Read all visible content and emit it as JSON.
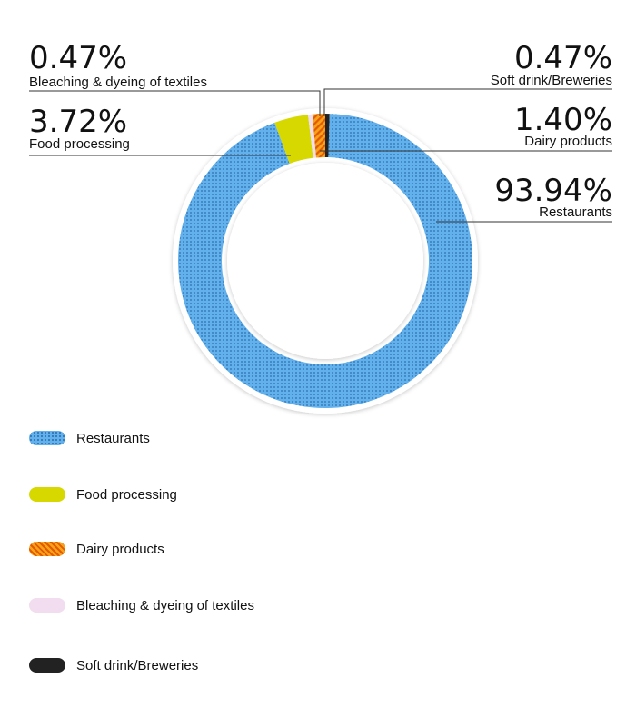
{
  "chart_data": {
    "type": "pie",
    "title": "",
    "slices": [
      {
        "label": "Restaurants",
        "pct_label": "93.94%",
        "value": 93.94,
        "color": "#5aa9e6",
        "pattern": "dots"
      },
      {
        "label": "Food processing",
        "pct_label": "3.72%",
        "value": 3.72,
        "color": "#d6d800",
        "pattern": "solid"
      },
      {
        "label": "Dairy products",
        "pct_label": "1.40%",
        "value": 1.4,
        "color": "#f08a00",
        "pattern": "stripes"
      },
      {
        "label": "Bleaching & dyeing of textiles",
        "pct_label": "0.47%",
        "value": 0.47,
        "color": "#f2dcef",
        "pattern": "solid"
      },
      {
        "label": "Soft drink/Breweries",
        "pct_label": "0.47%",
        "value": 0.47,
        "color": "#222222",
        "pattern": "solid"
      }
    ],
    "legend": {
      "placement": "bottom-left",
      "items": [
        "Restaurants",
        "Food processing",
        "Dairy products",
        "Bleaching & dyeing of textiles",
        "Soft drink/Breweries"
      ]
    }
  }
}
